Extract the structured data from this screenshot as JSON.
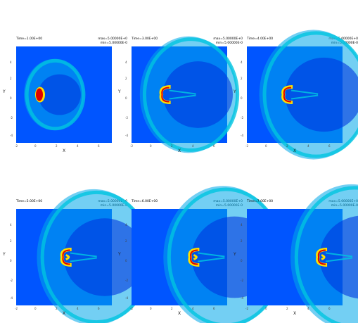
{
  "figure": {
    "panels": [
      {
        "time": "Time=1.00E+00",
        "max": "max=5.00000E+0",
        "min": "min=5.00000E-0",
        "xlabel": "X",
        "ylabel": "Y",
        "time_value": 1.0,
        "bow_radius": 2.2,
        "bow_shift": 0.3,
        "shear": 0,
        "blob_x": 0.5
      },
      {
        "time": "Time=3.00E+00",
        "max": "max=5.00000E+0",
        "min": "min=5.00000E-0",
        "xlabel": "X",
        "ylabel": "Y",
        "time_value": 3.0,
        "bow_radius": 3.6,
        "bow_shift": 1.6,
        "shear": 0.5,
        "blob_x": 1.5
      },
      {
        "time": "Time=4.00E+00",
        "max": "max=5.00000E+0",
        "min": "min=5.00000E-0",
        "xlabel": "X",
        "ylabel": "Y",
        "time_value": 4.0,
        "bow_radius": 4.0,
        "bow_shift": 2.2,
        "shear": 1,
        "blob_x": 2.2
      },
      {
        "time": "Time=5.00E+00",
        "max": "max=5.00000E+0",
        "min": "min=5.00000E-0",
        "xlabel": "X",
        "ylabel": "Y",
        "time_value": 5.0,
        "bow_radius": 4.2,
        "bow_shift": 2.5,
        "shear": 1,
        "blob_x": 3.2
      },
      {
        "time": "Time=6.00E+00",
        "max": "max=5.00000E+0",
        "min": "min=5.00000E-0",
        "xlabel": "X",
        "ylabel": "Y",
        "time_value": 6.0,
        "bow_radius": 4.4,
        "bow_shift": 3.0,
        "shear": 1,
        "blob_x": 4.5
      },
      {
        "time": "Time=7.00E+00",
        "max": "max=5.00000E+0",
        "min": "min=5.00000E-0",
        "xlabel": "X",
        "ylabel": "Y",
        "time_value": 7.0,
        "bow_radius": 4.5,
        "bow_shift": 4.4,
        "shear": 1,
        "blob_x": 5.8
      }
    ],
    "x_ticks": [
      "-2",
      "0",
      "2",
      "4",
      "6"
    ],
    "y_ticks": [
      "4",
      "2",
      "0",
      "-2",
      "-4"
    ]
  },
  "chart_data": {
    "type": "heatmap",
    "panel_count": 6,
    "xlim": [
      -2,
      8
    ],
    "ylim": [
      -5,
      5
    ],
    "colormap": [
      "#0000cc",
      "#0055ff",
      "#00c4e0",
      "#30e8b0",
      "#ffe000",
      "#ff6000",
      "#e00000"
    ],
    "times": [
      1.0,
      3.0,
      4.0,
      5.0,
      6.0,
      7.0
    ]
  }
}
